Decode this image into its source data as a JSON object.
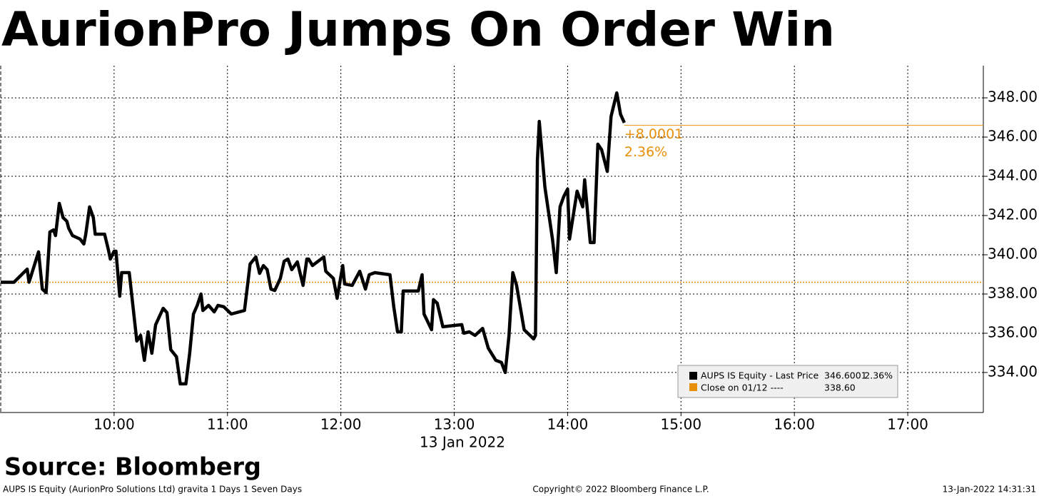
{
  "chart_data": {
    "type": "line",
    "title": "AurionPro Jumps On Order Win",
    "x_axis_label": "13 Jan 2022",
    "source": "Source: Bloomberg",
    "footer_left": "AUPS IS Equity (AurionPro Solutions Ltd) gravita 1 Days 1 Seven Days",
    "footer_center": "Copyright© 2022 Bloomberg Finance L.P.",
    "footer_right": "13-Jan-2022 14:31:31",
    "x": [
      "09:00",
      "09:07",
      "09:14",
      "09:15",
      "09:18",
      "09:20",
      "09:22",
      "09:24",
      "09:26",
      "09:28",
      "09:29",
      "09:31",
      "09:33",
      "09:35",
      "09:36",
      "09:38",
      "09:42",
      "09:44",
      "09:45",
      "09:47",
      "09:49",
      "09:50",
      "09:55",
      "09:57",
      "09:58",
      "10:00",
      "10:01",
      "10:03",
      "10:04",
      "10:08",
      "10:10",
      "10:12",
      "10:14",
      "10:16",
      "10:18",
      "10:20",
      "10:22",
      "10:26",
      "10:28",
      "10:30",
      "10:33",
      "10:35",
      "10:38",
      "10:40",
      "10:42",
      "10:44",
      "10:46",
      "10:47",
      "10:50",
      "10:53",
      "10:55",
      "10:58",
      "11:02",
      "11:09",
      "11:12",
      "11:15",
      "11:17",
      "11:19",
      "11:21",
      "11:23",
      "11:25",
      "11:28",
      "11:30",
      "11:32",
      "11:34",
      "11:37",
      "11:40",
      "11:42",
      "11:43",
      "11:45",
      "11:51",
      "11:52",
      "11:56",
      "11:58",
      "12:01",
      "12:02",
      "12:06",
      "12:10",
      "12:13",
      "12:15",
      "12:18",
      "12:26",
      "12:28",
      "12:30",
      "12:32",
      "12:33",
      "12:41",
      "12:43",
      "12:44",
      "12:48",
      "12:49",
      "12:51",
      "12:54",
      "13:04",
      "13:05",
      "13:08",
      "13:11",
      "13:15",
      "13:18",
      "13:22",
      "13:25",
      "13:27",
      "13:29",
      "13:31",
      "13:33",
      "13:37",
      "13:42",
      "13:43",
      "13:44",
      "13:45",
      "13:48",
      "13:52",
      "13:54",
      "13:56",
      "13:58",
      "14:00",
      "14:01",
      "14:05",
      "14:08",
      "14:09",
      "14:12",
      "14:14",
      "14:16",
      "14:18",
      "14:21",
      "14:23",
      "14:26",
      "14:28",
      "14:30"
    ],
    "series": [
      {
        "name": "AUPS IS Equity - Last Price",
        "color": "#000000",
        "values": [
          338.6,
          338.6,
          339.27,
          338.6,
          339.53,
          340.15,
          338.25,
          338.07,
          341.16,
          341.27,
          340.98,
          342.62,
          341.89,
          341.71,
          341.35,
          340.98,
          340.8,
          340.55,
          341.05,
          342.44,
          341.89,
          341.05,
          341.05,
          340.25,
          339.78,
          340.18,
          340.18,
          337.89,
          339.09,
          339.09,
          337.35,
          335.6,
          335.89,
          334.62,
          336.07,
          334.98,
          336.44,
          337.27,
          337.05,
          335.16,
          334.8,
          333.42,
          333.42,
          334.98,
          336.98,
          337.42,
          338.0,
          337.16,
          337.42,
          337.09,
          337.42,
          337.35,
          336.98,
          337.16,
          339.53,
          339.89,
          339.05,
          339.45,
          339.24,
          338.25,
          338.18,
          338.8,
          339.67,
          339.78,
          339.24,
          339.64,
          338.44,
          339.78,
          339.78,
          339.45,
          339.89,
          339.16,
          338.8,
          337.78,
          339.45,
          338.51,
          338.44,
          339.16,
          338.25,
          338.98,
          339.09,
          338.98,
          337.35,
          336.07,
          336.07,
          338.15,
          338.15,
          338.98,
          336.98,
          336.18,
          337.71,
          337.53,
          336.33,
          336.44,
          336.0,
          336.07,
          335.89,
          336.25,
          335.24,
          334.62,
          334.51,
          334.0,
          335.89,
          339.09,
          338.44,
          336.18,
          335.71,
          335.89,
          344.8,
          346.8,
          343.45,
          340.8,
          339.09,
          342.44,
          342.98,
          343.35,
          340.8,
          343.24,
          342.44,
          343.82,
          340.62,
          340.62,
          345.64,
          345.35,
          344.25,
          347.05,
          348.25,
          347.16,
          346.73
        ],
        "last_value": 346.6001,
        "change_label": "+8.0001",
        "change_pct_label": "2.36%"
      }
    ],
    "reference": {
      "name": "Close on 01/12 ----",
      "value": 338.6,
      "value_label": "338.60",
      "color": "#e8900c"
    },
    "xlim": [
      "09:00",
      "17:40"
    ],
    "xticks": [
      "10:00",
      "11:00",
      "12:00",
      "13:00",
      "14:00",
      "15:00",
      "16:00",
      "17:00"
    ],
    "ylim": [
      331.96,
      349.64
    ],
    "yticks": [
      {
        "value": 334,
        "label": "334.00"
      },
      {
        "value": 336,
        "label": "336.00"
      },
      {
        "value": 338,
        "label": "338.00"
      },
      {
        "value": 340,
        "label": "340.00"
      },
      {
        "value": 342,
        "label": "342.00"
      },
      {
        "value": 344,
        "label": "344.00"
      },
      {
        "value": 346,
        "label": "346.00"
      },
      {
        "value": 348,
        "label": "348.00"
      }
    ],
    "grid": true
  }
}
